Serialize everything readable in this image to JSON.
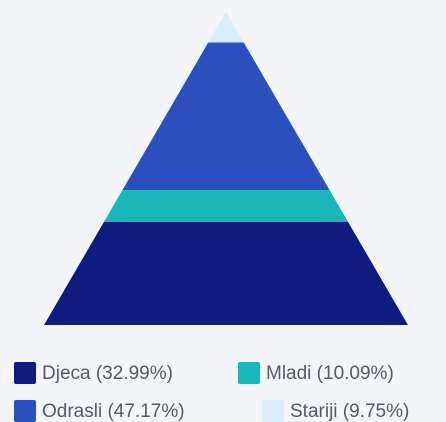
{
  "chart_data": {
    "type": "pyramid",
    "categories": [
      "Djeca (32.99%)",
      "Mladi (10.09%)",
      "Odrasli (47.17%)",
      "Stariji (9.75%)"
    ],
    "values": [
      32.99,
      10.09,
      47.17,
      9.75
    ],
    "colors": [
      "#0f1c7e",
      "#19b7b9",
      "#2c4fbe",
      "#d8eef8"
    ]
  }
}
